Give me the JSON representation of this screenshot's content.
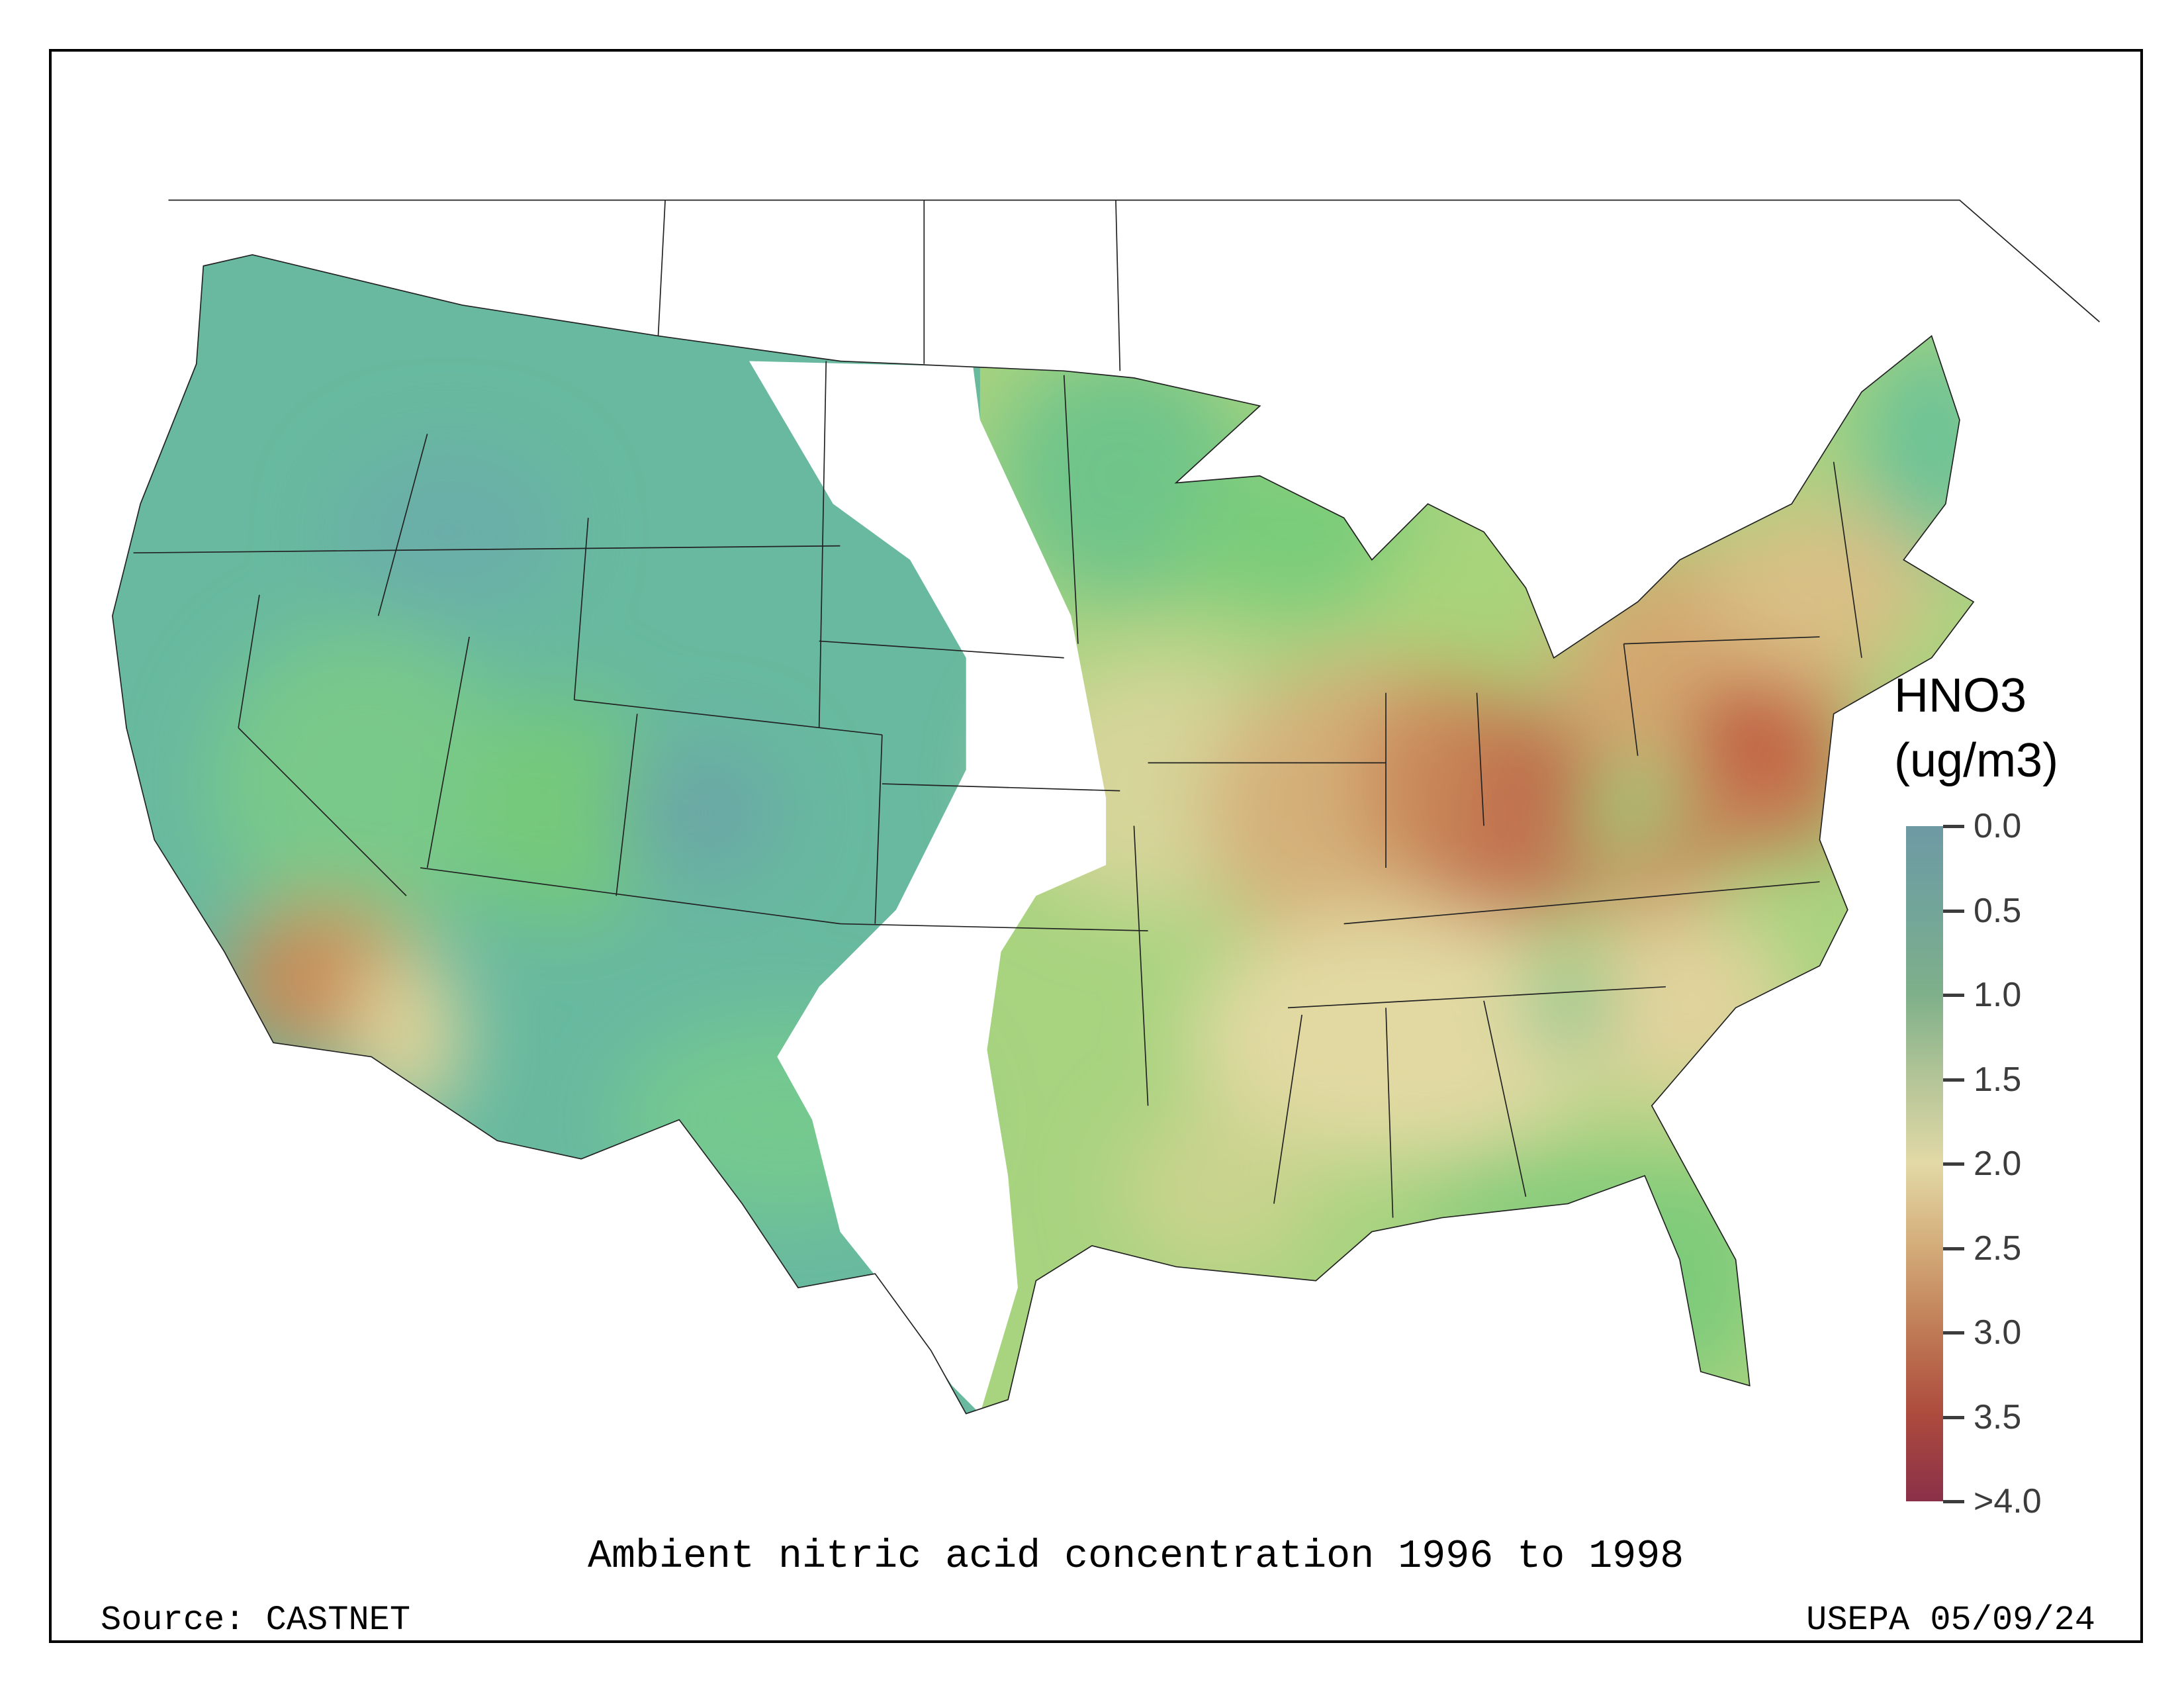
{
  "map": {
    "caption": "Ambient nitric acid concentration 1996 to 1998",
    "source": "Source: CASTNET",
    "credit": "USEPA 05/09/24"
  },
  "legend": {
    "title_line1": "HNO3",
    "title_line2": "(ug/m3)",
    "ticks": [
      "0.0",
      "0.5",
      "1.0",
      "1.5",
      "2.0",
      "2.5",
      "3.0",
      "3.5",
      ">4.0"
    ],
    "colors": [
      "#6e9aa4",
      "#72a59a",
      "#7fb08a",
      "#b2c497",
      "#e2d9a6",
      "#d4ad7a",
      "#bf7a55",
      "#ad4b3d",
      "#8a3049"
    ]
  }
}
